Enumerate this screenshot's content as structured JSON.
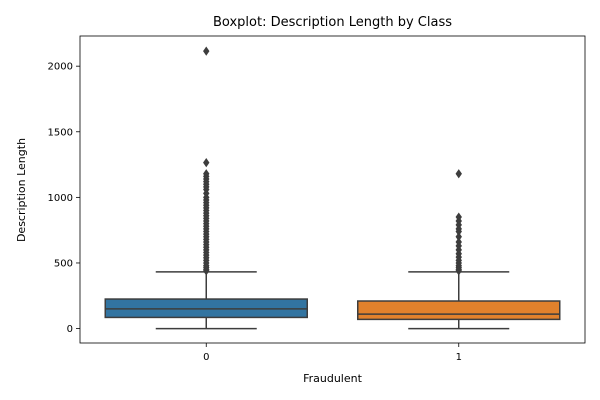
{
  "chart_data": {
    "type": "boxplot",
    "title": "Boxplot: Description Length by Class",
    "xlabel": "Fraudulent",
    "ylabel": "Description Length",
    "categories": [
      "0",
      "1"
    ],
    "ylim": [
      -110,
      2230
    ],
    "yticks": [
      0,
      500,
      1000,
      1500,
      2000
    ],
    "grid": false,
    "boxes": [
      {
        "category": "0",
        "color": "#3274a1",
        "whisker_low": 0,
        "q1": 85,
        "median": 150,
        "q3": 225,
        "whisker_high": 432,
        "outliers": [
          2115,
          1265,
          1180,
          1160,
          1140,
          1120,
          1100,
          1080,
          1060,
          1030,
          1000,
          980,
          960,
          940,
          920,
          900,
          880,
          860,
          840,
          820,
          800,
          780,
          760,
          740,
          720,
          700,
          680,
          660,
          640,
          620,
          600,
          580,
          560,
          540,
          520,
          500,
          480,
          465,
          450,
          440
        ]
      },
      {
        "category": "1",
        "color": "#e1812c",
        "whisker_low": 0,
        "q1": 70,
        "median": 110,
        "q3": 210,
        "whisker_high": 432,
        "outliers": [
          1180,
          850,
          820,
          790,
          760,
          740,
          700,
          660,
          630,
          600,
          570,
          545,
          520,
          500,
          480,
          465,
          450,
          440
        ]
      }
    ]
  }
}
